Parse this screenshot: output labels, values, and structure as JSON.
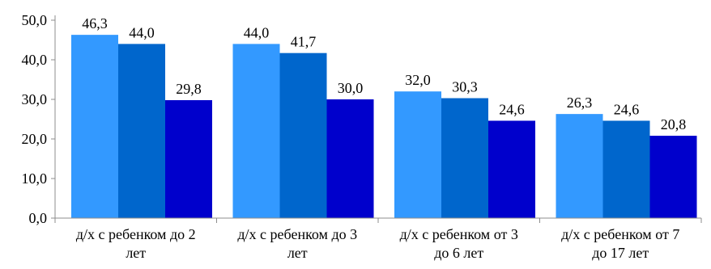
{
  "chart_data": {
    "type": "bar",
    "title": "",
    "xlabel": "",
    "ylabel": "",
    "ylim": [
      0,
      50
    ],
    "yticks": [
      "0,0",
      "10,0",
      "20,0",
      "30,0",
      "40,0",
      "50,0"
    ],
    "ytick_values": [
      0,
      10,
      20,
      30,
      40,
      50
    ],
    "grid": false,
    "legend": "none",
    "categories": [
      [
        "д/х с ребенком до 2",
        "лет"
      ],
      [
        "д/х с ребенком до 3",
        "лет"
      ],
      [
        "д/х с ребенком от 3",
        "до 6 лет"
      ],
      [
        "д/х с ребенком от 7",
        "до 17 лет"
      ]
    ],
    "series": [
      {
        "color": "#3399ff",
        "values": [
          46.3,
          44.0,
          32.0,
          26.3
        ],
        "labels": [
          "46,3",
          "44,0",
          "32,0",
          "26,3"
        ]
      },
      {
        "color": "#0066cc",
        "values": [
          44.0,
          41.7,
          30.3,
          24.6
        ],
        "labels": [
          "44,0",
          "41,7",
          "30,3",
          "24,6"
        ]
      },
      {
        "color": "#0000cc",
        "values": [
          29.8,
          30.0,
          24.6,
          20.8
        ],
        "labels": [
          "29,8",
          "30,0",
          "24,6",
          "20,8"
        ]
      }
    ]
  }
}
